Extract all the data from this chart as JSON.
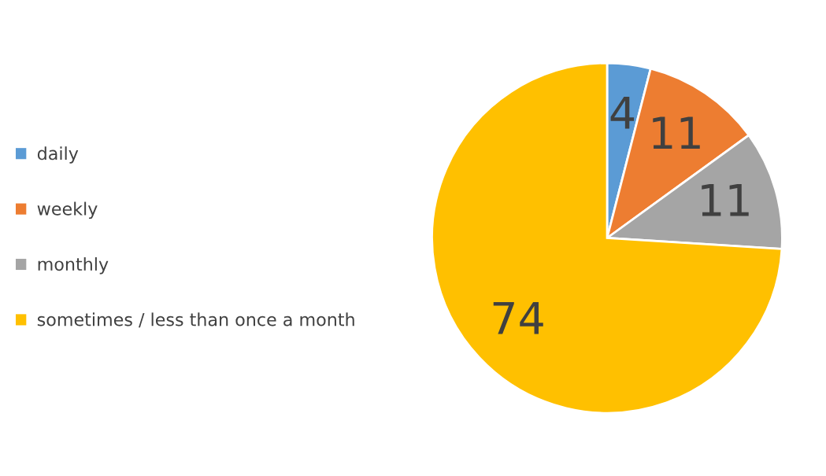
{
  "chart_data": {
    "type": "pie",
    "categories": [
      "daily",
      "weekly",
      "monthly",
      "sometimes / less than once a month"
    ],
    "values": [
      4,
      11,
      11,
      74
    ],
    "colors": [
      "#5b9bd5",
      "#ed7d31",
      "#a5a5a5",
      "#ffc000"
    ],
    "data_labels": true,
    "legend": "left"
  }
}
